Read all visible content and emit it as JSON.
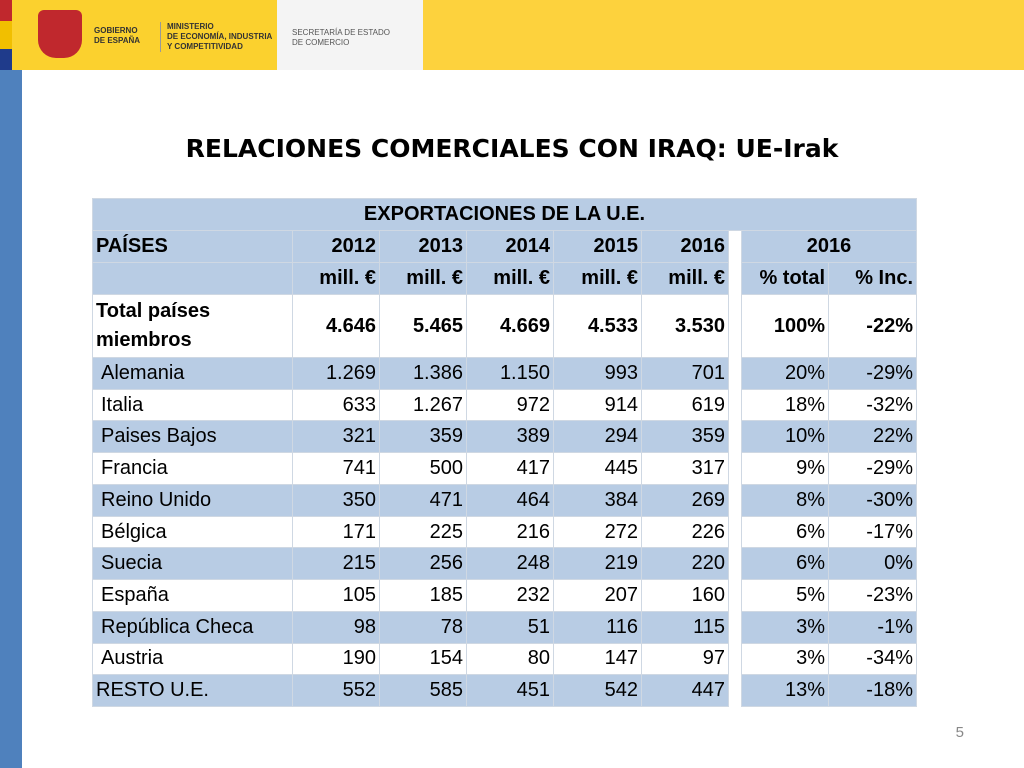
{
  "header": {
    "gobierno": [
      "GOBIERNO",
      "DE ESPAÑA"
    ],
    "ministerio": [
      "MINISTERIO",
      "DE ECONOMÍA, INDUSTRIA",
      "Y COMPETITIVIDAD"
    ],
    "secretaria": [
      "SECRETARÍA DE ESTADO",
      "DE COMERCIO"
    ]
  },
  "title": "RELACIONES COMERCIALES CON IRAQ: UE-Irak",
  "table": {
    "caption": "EXPORTACIONES DE LA U.E.",
    "col_header": [
      "PAÍSES",
      "2012",
      "2013",
      "2014",
      "2015",
      "2016"
    ],
    "share_header": "2016",
    "units": [
      "mill. €",
      "mill. €",
      "mill. €",
      "mill. €",
      "mill. €",
      "% total",
      "% Inc."
    ],
    "rows": [
      [
        "Total países miembros",
        "4.646",
        "5.465",
        "4.669",
        "4.533",
        "3.530",
        "100%",
        "-22%"
      ],
      [
        "Alemania",
        "1.269",
        "1.386",
        "1.150",
        "993",
        "701",
        "20%",
        "-29%"
      ],
      [
        "Italia",
        "633",
        "1.267",
        "972",
        "914",
        "619",
        "18%",
        "-32%"
      ],
      [
        "Paises Bajos",
        "321",
        "359",
        "389",
        "294",
        "359",
        "10%",
        "22%"
      ],
      [
        "Francia",
        "741",
        "500",
        "417",
        "445",
        "317",
        "9%",
        "-29%"
      ],
      [
        "Reino Unido",
        "350",
        "471",
        "464",
        "384",
        "269",
        "8%",
        "-30%"
      ],
      [
        "Bélgica",
        "171",
        "225",
        "216",
        "272",
        "226",
        "6%",
        "-17%"
      ],
      [
        "Suecia",
        "215",
        "256",
        "248",
        "219",
        "220",
        "6%",
        "0%"
      ],
      [
        "España",
        "105",
        "185",
        "232",
        "207",
        "160",
        "5%",
        "-23%"
      ],
      [
        "República Checa",
        "98",
        "78",
        "51",
        "116",
        "115",
        "3%",
        "-1%"
      ],
      [
        "Austria",
        "190",
        "154",
        "80",
        "147",
        "97",
        "3%",
        "-34%"
      ],
      [
        "RESTO U.E.",
        "552",
        "585",
        "451",
        "542",
        "447",
        "13%",
        "-18%"
      ]
    ]
  },
  "page_number": "5"
}
